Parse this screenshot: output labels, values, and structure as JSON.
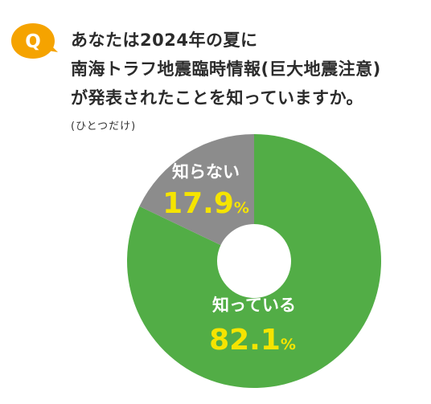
{
  "question": {
    "badge": "Q",
    "title_lines": [
      "あなたは2024年の夏に",
      "南海トラフ地震臨時情報(巨大地震注意)",
      "が発表されたことを知っていますか。"
    ],
    "note": "(ひとつだけ)"
  },
  "colors": {
    "badge": "#f5a300",
    "known": "#52ad46",
    "unknown": "#8c8c8c",
    "value_text": "#f5e400",
    "label_text": "#ffffff"
  },
  "chart_data": {
    "type": "pie",
    "donut": true,
    "start": "top",
    "direction": "clockwise",
    "slices": [
      {
        "label": "知っている",
        "value": 82.1,
        "value_text": "82.1",
        "unit": "%"
      },
      {
        "label": "知らない",
        "value": 17.9,
        "value_text": "17.9",
        "unit": "%"
      }
    ]
  }
}
